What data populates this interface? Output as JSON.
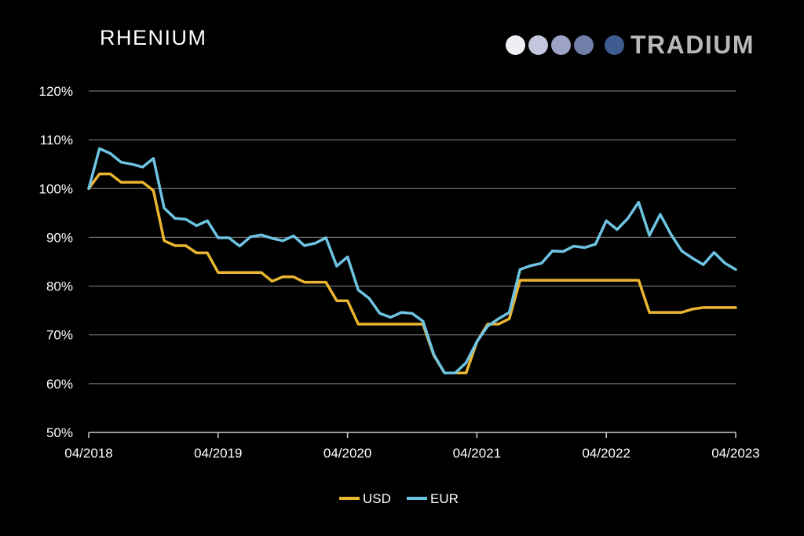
{
  "header": {
    "title": "RHENIUM",
    "brand": "TRADIUM",
    "brand_dot_colors": [
      "#eeeef5",
      "#c4c6de",
      "#9da3c6",
      "#717ea8",
      "#3f5c91"
    ]
  },
  "colors": {
    "usd": "#eab530",
    "eur": "#6ec3e3",
    "grid": "#8a8a8a",
    "text": "#ffffff"
  },
  "chart_data": {
    "type": "line",
    "title": "RHENIUM",
    "xlabel": "",
    "ylabel": "",
    "ylim": [
      50,
      120
    ],
    "yticks": [
      50,
      60,
      70,
      80,
      90,
      100,
      110,
      120
    ],
    "ytick_labels": [
      "50%",
      "60%",
      "70%",
      "80%",
      "90%",
      "100%",
      "110%",
      "120%"
    ],
    "xtick_labels": [
      "04/2018",
      "04/2019",
      "04/2020",
      "04/2021",
      "04/2022",
      "04/2023"
    ],
    "x_unit": "months since 04/2018",
    "xlim": [
      0,
      60
    ],
    "grid": true,
    "legend_position": "bottom-center",
    "series": [
      {
        "name": "USD",
        "color": "#eab530",
        "points": [
          [
            0,
            100
          ],
          [
            1,
            103
          ],
          [
            2,
            103
          ],
          [
            3,
            101.3
          ],
          [
            4,
            101.3
          ],
          [
            5,
            101.3
          ],
          [
            6,
            99.6
          ],
          [
            7,
            89.3
          ],
          [
            8,
            88.3
          ],
          [
            9,
            88.3
          ],
          [
            10,
            86.8
          ],
          [
            11,
            86.8
          ],
          [
            12,
            82.8
          ],
          [
            13,
            82.8
          ],
          [
            14,
            82.8
          ],
          [
            15,
            82.8
          ],
          [
            16,
            82.8
          ],
          [
            17,
            81
          ],
          [
            18,
            81.9
          ],
          [
            19,
            81.9
          ],
          [
            20,
            80.8
          ],
          [
            21,
            80.8
          ],
          [
            22,
            80.8
          ],
          [
            23,
            77
          ],
          [
            24,
            77
          ],
          [
            25,
            72.2
          ],
          [
            26,
            72.2
          ],
          [
            27,
            72.2
          ],
          [
            28,
            72.2
          ],
          [
            29,
            72.2
          ],
          [
            30,
            72.2
          ],
          [
            31,
            72.2
          ],
          [
            32,
            65.8
          ],
          [
            33,
            62.2
          ],
          [
            34,
            62.2
          ],
          [
            35,
            62.2
          ],
          [
            36,
            68.6
          ],
          [
            37,
            72.2
          ],
          [
            38,
            72.2
          ],
          [
            39,
            73.3
          ],
          [
            40,
            81.2
          ],
          [
            41,
            81.2
          ],
          [
            42,
            81.2
          ],
          [
            43,
            81.2
          ],
          [
            44,
            81.2
          ],
          [
            45,
            81.2
          ],
          [
            46,
            81.2
          ],
          [
            47,
            81.2
          ],
          [
            48,
            81.2
          ],
          [
            49,
            81.2
          ],
          [
            50,
            81.2
          ],
          [
            51,
            81.2
          ],
          [
            52,
            74.6
          ],
          [
            53,
            74.6
          ],
          [
            54,
            74.6
          ],
          [
            55,
            74.6
          ],
          [
            56,
            75.3
          ],
          [
            57,
            75.6
          ],
          [
            58,
            75.6
          ],
          [
            59,
            75.6
          ],
          [
            60,
            75.6
          ]
        ]
      },
      {
        "name": "EUR",
        "color": "#6ec3e3",
        "points": [
          [
            0,
            100
          ],
          [
            1,
            108.2
          ],
          [
            2,
            107.2
          ],
          [
            3,
            105.4
          ],
          [
            4,
            105
          ],
          [
            5,
            104.4
          ],
          [
            6,
            106.2
          ],
          [
            7,
            96
          ],
          [
            8,
            93.9
          ],
          [
            9,
            93.7
          ],
          [
            10,
            92.4
          ],
          [
            11,
            93.4
          ],
          [
            12,
            89.9
          ],
          [
            13,
            89.9
          ],
          [
            14,
            88.2
          ],
          [
            15,
            90.1
          ],
          [
            16,
            90.5
          ],
          [
            17,
            89.8
          ],
          [
            18,
            89.3
          ],
          [
            19,
            90.3
          ],
          [
            20,
            88.3
          ],
          [
            21,
            88.8
          ],
          [
            22,
            89.9
          ],
          [
            23,
            84.1
          ],
          [
            24,
            86
          ],
          [
            25,
            79.2
          ],
          [
            26,
            77.5
          ],
          [
            27,
            74.4
          ],
          [
            28,
            73.6
          ],
          [
            29,
            74.6
          ],
          [
            30,
            74.4
          ],
          [
            31,
            72.8
          ],
          [
            32,
            66
          ],
          [
            33,
            62.2
          ],
          [
            34,
            62.2
          ],
          [
            35,
            64.3
          ],
          [
            36,
            68.6
          ],
          [
            37,
            71.8
          ],
          [
            38,
            73.3
          ],
          [
            39,
            74.6
          ],
          [
            40,
            83.4
          ],
          [
            41,
            84.2
          ],
          [
            42,
            84.7
          ],
          [
            43,
            87.2
          ],
          [
            44,
            87.1
          ],
          [
            45,
            88.2
          ],
          [
            46,
            87.9
          ],
          [
            47,
            88.6
          ],
          [
            48,
            93.4
          ],
          [
            49,
            91.6
          ],
          [
            50,
            93.9
          ],
          [
            51,
            97.2
          ],
          [
            52,
            90.4
          ],
          [
            53,
            94.7
          ],
          [
            54,
            90.6
          ],
          [
            55,
            87.2
          ],
          [
            56,
            85.7
          ],
          [
            57,
            84.4
          ],
          [
            58,
            86.9
          ],
          [
            59,
            84.7
          ],
          [
            60,
            83.4
          ]
        ]
      }
    ]
  }
}
